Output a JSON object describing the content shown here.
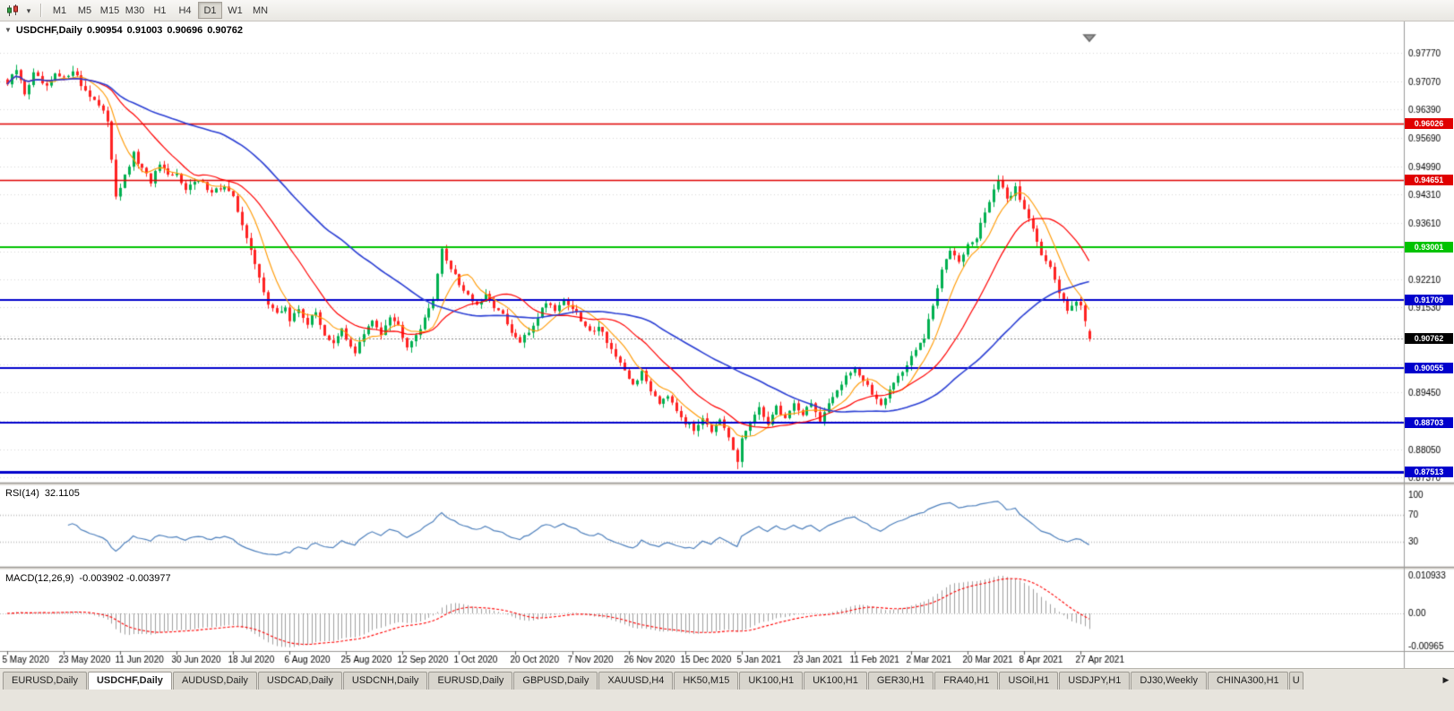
{
  "toolbar": {
    "timeframes": [
      "M1",
      "M5",
      "M15",
      "M30",
      "H1",
      "H4",
      "D1",
      "W1",
      "MN"
    ],
    "active_timeframe": "D1",
    "chart_type_icon": "candlestick-chart-icon",
    "dropdown_icon": "caret-down-icon"
  },
  "price_chart": {
    "title": "USDCHF,Daily",
    "ohlc": {
      "open": "0.90954",
      "high": "0.91003",
      "low": "0.90696",
      "close": "0.90762"
    },
    "axis_labels": [
      "0.97770",
      "0.97070",
      "0.96390",
      "0.95690",
      "0.94990",
      "0.94310",
      "0.93610",
      "0.92910",
      "0.92210",
      "0.91530",
      "0.90830",
      "0.90130",
      "0.89450",
      "0.88750",
      "0.88050",
      "0.87370"
    ],
    "levels": [
      {
        "value": 0.96026,
        "label": "0.96026",
        "color": "#e00000",
        "width": 1.5
      },
      {
        "value": 0.94651,
        "label": "0.94651",
        "color": "#e00000",
        "width": 1.5
      },
      {
        "value": 0.93001,
        "label": "0.93001",
        "color": "#00c300",
        "width": 2
      },
      {
        "value": 0.91709,
        "label": "0.91709",
        "color": "#0000cc",
        "width": 2
      },
      {
        "value": 0.90055,
        "label": "0.90055",
        "color": "#0000cc",
        "width": 2
      },
      {
        "value": 0.88703,
        "label": "0.88703",
        "color": "#0000cc",
        "width": 2
      },
      {
        "value": 0.87513,
        "label": "0.87513",
        "color": "#0000cc",
        "width": 3
      }
    ],
    "current_price": {
      "value": 0.90762,
      "label": "0.90762",
      "color": "#000000"
    }
  },
  "rsi_panel": {
    "label": "RSI(14)",
    "value": "32.1105",
    "axis_labels": [
      "100",
      "70",
      "30"
    ],
    "level_lines": [
      70,
      30
    ]
  },
  "macd_panel": {
    "label": "MACD(12,26,9)",
    "values": "-0.003902 -0.003977",
    "axis_labels": [
      "0.010933",
      "0.00",
      "-0.00965"
    ]
  },
  "tabs": {
    "items": [
      "EURUSD,Daily",
      "USDCHF,Daily",
      "AUDUSD,Daily",
      "USDCAD,Daily",
      "USDCNH,Daily",
      "EURUSD,Daily",
      "GBPUSD,Daily",
      "XAUUSD,H4",
      "HK50,M15",
      "UK100,H1",
      "UK100,H1",
      "GER30,H1",
      "FRA40,H1",
      "USOil,H1",
      "USDJPY,H1",
      "DJ30,Weekly",
      "CHINA300,H1"
    ],
    "active_index": 1,
    "partial_tab": "U",
    "scroll_right_icon": "arrow-right-icon"
  },
  "chart_data": {
    "type": "candlestick",
    "symbol": "USDCHF",
    "timeframe": "Daily",
    "visible_bars": 250,
    "current_ohlc": {
      "open": 0.90954,
      "high": 0.91003,
      "low": 0.90696,
      "close": 0.90762
    },
    "y_range": [
      0.8737,
      0.9784
    ],
    "x_labels": [
      "5 May 2020",
      "23 May 2020",
      "11 Jun 2020",
      "30 Jun 2020",
      "18 Jul 2020",
      "6 Aug 2020",
      "25 Aug 2020",
      "12 Sep 2020",
      "1 Oct 2020",
      "20 Oct 2020",
      "7 Nov 2020",
      "26 Nov 2020",
      "15 Dec 2020",
      "5 Jan 2021",
      "23 Jan 2021",
      "11 Feb 2021",
      "2 Mar 2021",
      "20 Mar 2021",
      "8 Apr 2021",
      "27 Apr 2021"
    ],
    "bars_per_label": 13,
    "horizontal_levels": [
      0.96026,
      0.94651,
      0.93001,
      0.91709,
      0.90055,
      0.88703,
      0.87513
    ],
    "price_path_anchors": [
      [
        0,
        0.97
      ],
      [
        2,
        0.9735
      ],
      [
        4,
        0.9678
      ],
      [
        6,
        0.9725
      ],
      [
        9,
        0.969
      ],
      [
        11,
        0.9722
      ],
      [
        13,
        0.9712
      ],
      [
        15,
        0.9738
      ],
      [
        17,
        0.9698
      ],
      [
        20,
        0.9662
      ],
      [
        23,
        0.9612
      ],
      [
        25,
        0.9428
      ],
      [
        27,
        0.9472
      ],
      [
        29,
        0.9528
      ],
      [
        31,
        0.949
      ],
      [
        33,
        0.9462
      ],
      [
        35,
        0.9502
      ],
      [
        37,
        0.9472
      ],
      [
        39,
        0.9478
      ],
      [
        41,
        0.9448
      ],
      [
        44,
        0.9462
      ],
      [
        47,
        0.944
      ],
      [
        50,
        0.9448
      ],
      [
        52,
        0.942
      ],
      [
        54,
        0.936
      ],
      [
        56,
        0.929
      ],
      [
        58,
        0.9225
      ],
      [
        60,
        0.9165
      ],
      [
        62,
        0.9135
      ],
      [
        64,
        0.9155
      ],
      [
        65,
        0.912
      ],
      [
        67,
        0.915
      ],
      [
        69,
        0.9115
      ],
      [
        71,
        0.914
      ],
      [
        73,
        0.9088
      ],
      [
        75,
        0.9062
      ],
      [
        77,
        0.9098
      ],
      [
        78,
        0.9072
      ],
      [
        80,
        0.9045
      ],
      [
        82,
        0.9088
      ],
      [
        84,
        0.9118
      ],
      [
        86,
        0.9092
      ],
      [
        88,
        0.9135
      ],
      [
        90,
        0.9108
      ],
      [
        92,
        0.9062
      ],
      [
        94,
        0.9088
      ],
      [
        96,
        0.9122
      ],
      [
        98,
        0.918
      ],
      [
        100,
        0.9292
      ],
      [
        101,
        0.9268
      ],
      [
        103,
        0.9235
      ],
      [
        104,
        0.921
      ],
      [
        106,
        0.9185
      ],
      [
        108,
        0.9155
      ],
      [
        110,
        0.918
      ],
      [
        112,
        0.9158
      ],
      [
        114,
        0.9132
      ],
      [
        116,
        0.9088
      ],
      [
        118,
        0.9068
      ],
      [
        120,
        0.9092
      ],
      [
        122,
        0.9132
      ],
      [
        124,
        0.9168
      ],
      [
        126,
        0.915
      ],
      [
        128,
        0.9172
      ],
      [
        130,
        0.9152
      ],
      [
        132,
        0.912
      ],
      [
        134,
        0.9092
      ],
      [
        136,
        0.911
      ],
      [
        138,
        0.9072
      ],
      [
        140,
        0.9032
      ],
      [
        142,
        0.8992
      ],
      [
        144,
        0.8965
      ],
      [
        146,
        0.8992
      ],
      [
        148,
        0.8952
      ],
      [
        150,
        0.8922
      ],
      [
        152,
        0.8942
      ],
      [
        154,
        0.8905
      ],
      [
        156,
        0.8872
      ],
      [
        158,
        0.8852
      ],
      [
        160,
        0.8888
      ],
      [
        162,
        0.8852
      ],
      [
        164,
        0.8872
      ],
      [
        166,
        0.8832
      ],
      [
        168,
        0.8772
      ],
      [
        169,
        0.8832
      ],
      [
        171,
        0.8872
      ],
      [
        173,
        0.8902
      ],
      [
        175,
        0.8872
      ],
      [
        177,
        0.8908
      ],
      [
        179,
        0.8882
      ],
      [
        181,
        0.8918
      ],
      [
        183,
        0.8892
      ],
      [
        185,
        0.8922
      ],
      [
        187,
        0.8872
      ],
      [
        189,
        0.8912
      ],
      [
        191,
        0.8952
      ],
      [
        193,
        0.8988
      ],
      [
        195,
        0.9005
      ],
      [
        197,
        0.8972
      ],
      [
        199,
        0.8942
      ],
      [
        201,
        0.8918
      ],
      [
        203,
        0.8952
      ],
      [
        205,
        0.8985
      ],
      [
        207,
        0.9012
      ],
      [
        209,
        0.9048
      ],
      [
        211,
        0.9078
      ],
      [
        213,
        0.9158
      ],
      [
        215,
        0.9242
      ],
      [
        217,
        0.9298
      ],
      [
        219,
        0.9272
      ],
      [
        221,
        0.9305
      ],
      [
        223,
        0.9322
      ],
      [
        225,
        0.9388
      ],
      [
        227,
        0.9442
      ],
      [
        228,
        0.9465
      ],
      [
        230,
        0.9415
      ],
      [
        232,
        0.9448
      ],
      [
        234,
        0.9392
      ],
      [
        236,
        0.9352
      ],
      [
        238,
        0.9285
      ],
      [
        240,
        0.9248
      ],
      [
        242,
        0.9188
      ],
      [
        244,
        0.9152
      ],
      [
        246,
        0.9172
      ],
      [
        247,
        0.9155
      ],
      [
        248,
        0.9118
      ],
      [
        249,
        0.9076
      ]
    ],
    "moving_averages": [
      {
        "period": 8,
        "color": "#ff9900"
      },
      {
        "period": 20,
        "color": "#ff0000"
      },
      {
        "period": 50,
        "color": "#2b3fd4"
      }
    ],
    "indicators": {
      "rsi": {
        "period": 14,
        "current": 32.1105,
        "scale": [
          0,
          100
        ],
        "levels": [
          30,
          70
        ]
      },
      "macd": {
        "fast": 12,
        "slow": 26,
        "signal": 9,
        "current_macd": -0.003902,
        "current_signal": -0.003977,
        "scale": [
          -0.00965,
          0.010933
        ]
      }
    }
  },
  "colors": {
    "up_candle": "#00b050",
    "down_candle": "#ff2222",
    "rsi_line": "#4f81bd",
    "macd_histogram": "#a0a0a0",
    "macd_signal": "#ff0000",
    "grid": "#d8d8d8",
    "axis_text": "#000000",
    "background": "#ffffff"
  }
}
